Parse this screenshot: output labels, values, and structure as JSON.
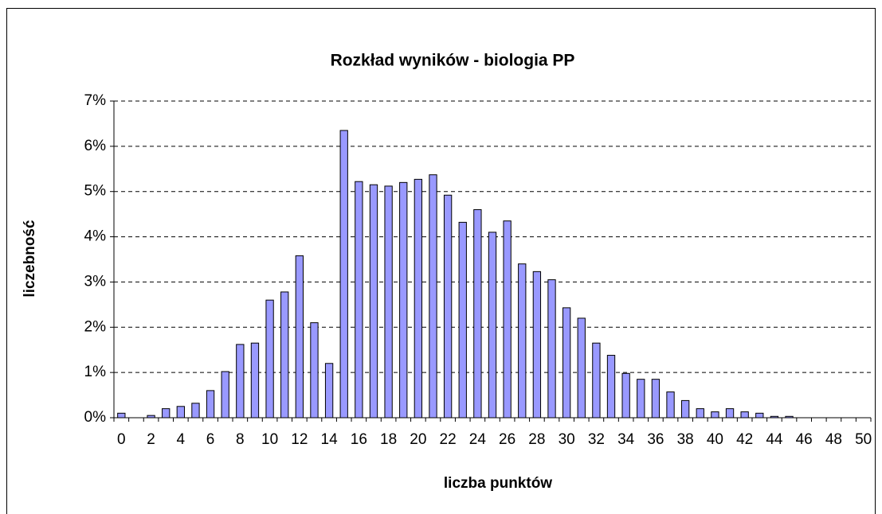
{
  "chart_data": {
    "type": "bar",
    "title": "Rozkład wyników - biologia PP",
    "x_label": "liczba punktów",
    "y_label": "liczebność",
    "categories": [
      "0",
      null,
      "2",
      null,
      "4",
      null,
      "6",
      null,
      "8",
      null,
      "10",
      null,
      "12",
      null,
      "14",
      null,
      "16",
      null,
      "18",
      null,
      "20",
      null,
      "22",
      null,
      "24",
      null,
      "26",
      null,
      "28",
      null,
      "30",
      null,
      "32",
      null,
      "34",
      null,
      "36",
      null,
      "38",
      null,
      "40",
      null,
      "42",
      null,
      "44",
      null,
      "46",
      null,
      "48",
      null,
      "50"
    ],
    "values": [
      0.1,
      0,
      0.05,
      0.2,
      0.25,
      0.32,
      0.6,
      1.02,
      1.62,
      1.65,
      2.6,
      2.78,
      3.58,
      2.1,
      1.2,
      6.35,
      5.22,
      5.15,
      5.12,
      5.2,
      5.27,
      5.37,
      4.92,
      4.32,
      4.6,
      4.1,
      4.35,
      3.4,
      3.23,
      3.05,
      2.43,
      2.2,
      1.65,
      1.38,
      0.98,
      0.85,
      0.85,
      0.57,
      0.38,
      0.2,
      0.13,
      0.2,
      0.13,
      0.1,
      0.03,
      0.03,
      0,
      0,
      0,
      0,
      0
    ],
    "color": "#9999ff",
    "ylim": [
      0,
      7
    ],
    "yticks": [
      {
        "value": 0,
        "label": "0%"
      },
      {
        "value": 1,
        "label": "1%"
      },
      {
        "value": 2,
        "label": "2%"
      },
      {
        "value": 3,
        "label": "3%"
      },
      {
        "value": 4,
        "label": "4%"
      },
      {
        "value": 5,
        "label": "5%"
      },
      {
        "value": 6,
        "label": "6%"
      },
      {
        "value": 7,
        "label": "7%"
      }
    ],
    "grid": true
  }
}
